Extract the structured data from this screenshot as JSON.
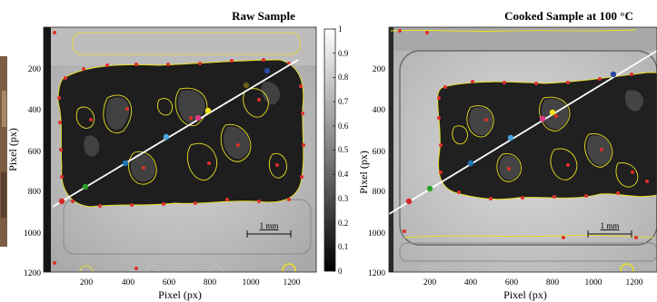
{
  "panels": [
    {
      "title": "Raw Sample",
      "xlabel": "Pixel (px)",
      "ylabel": "Pixel (px)",
      "xticks": [
        "200",
        "400",
        "600",
        "800",
        "1000",
        "1200"
      ],
      "yticks": [
        "200",
        "400",
        "600",
        "800",
        "1000",
        "1200"
      ],
      "scale_bar": "1 mm"
    },
    {
      "title": "Cooked Sample at 100 °C",
      "xlabel": "Pixel (px)",
      "ylabel": "Pixel (px)",
      "xticks": [
        "200",
        "400",
        "600",
        "800",
        "1000",
        "1200"
      ],
      "yticks": [
        "200",
        "400",
        "600",
        "800",
        "1000",
        "1200"
      ],
      "scale_bar": "1 mm"
    }
  ],
  "colorbar": {
    "ticks": [
      "1",
      "0.9",
      "0.8",
      "0.7",
      "0.6",
      "0.5",
      "0.4",
      "0.3",
      "0.2",
      "0.1",
      "0"
    ]
  },
  "colors": {
    "contour": "#e8e020",
    "edge_points": "#e0302a",
    "guide_line": "#ffffff",
    "marker_red": "#d62728",
    "marker_green": "#2ca02c",
    "marker_blue": "#1f77b4",
    "marker_sky": "#4aa8e0",
    "marker_pink": "#e03c8a",
    "marker_yellow": "#f2e21a",
    "marker_olive": "#6b5a14",
    "marker_navy": "#2a4aa0"
  }
}
